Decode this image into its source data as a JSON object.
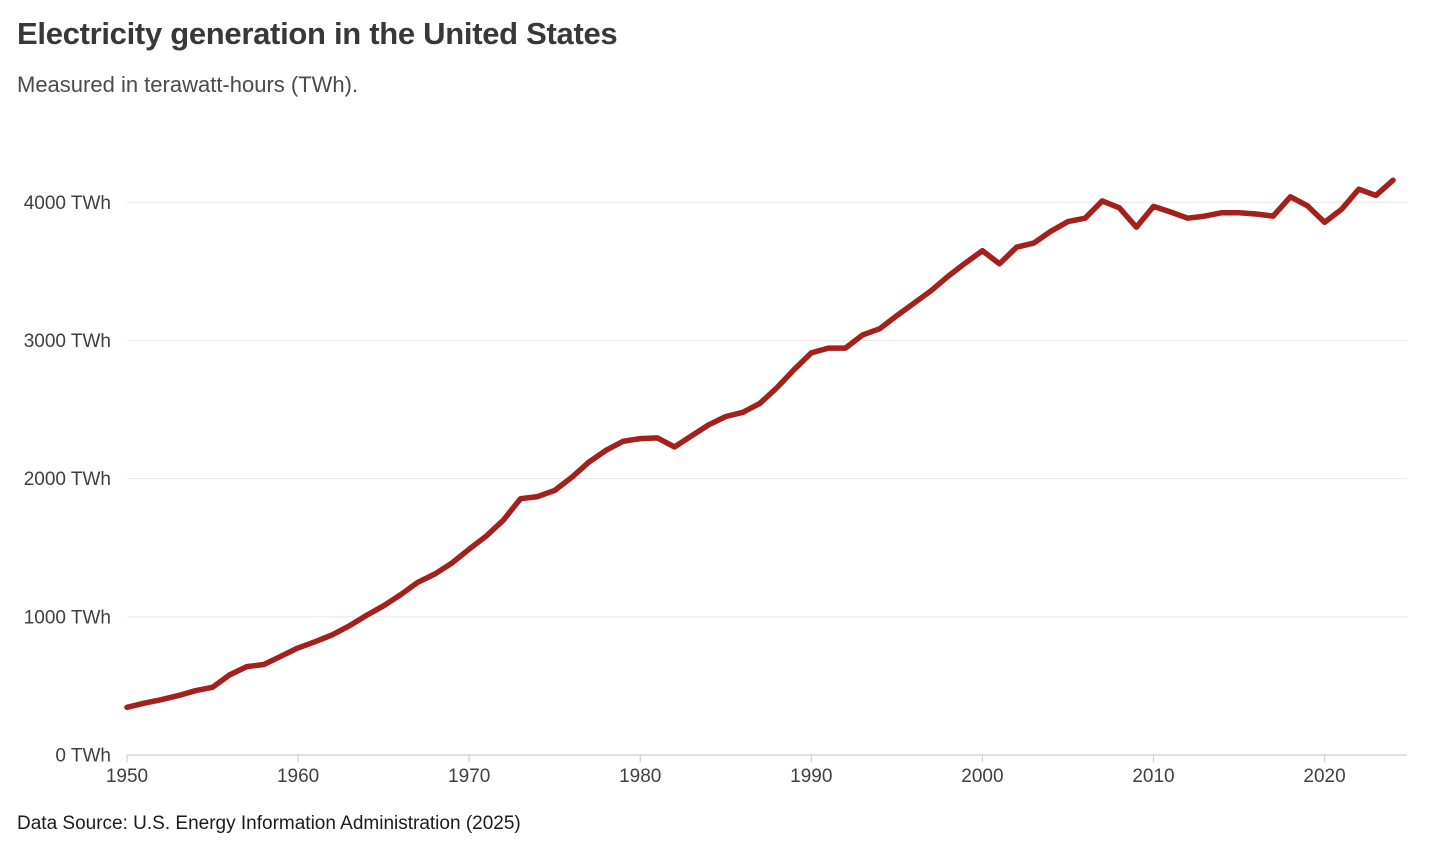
{
  "header": {
    "title": "Electricity generation in the United States",
    "subtitle": "Measured in terawatt-hours (TWh)."
  },
  "footer": {
    "source": "Data Source: U.S. Energy Information Administration (2025)"
  },
  "colors": {
    "line": "#A4201C",
    "grid": "#E7E7E7",
    "axis": "#CDCDCD",
    "tick_label": "#3F3F3F",
    "title": "#383838",
    "subtitle": "#4B4B4B",
    "source": "#1B1B1B",
    "background": "#FFFFFF"
  },
  "chart_data": {
    "type": "line",
    "title": "Electricity generation in the United States",
    "subtitle": "Measured in terawatt-hours (TWh).",
    "series_name": "Electricity generation",
    "unit": "TWh",
    "xlabel": "",
    "ylabel": "",
    "legend": "none",
    "grid": "horizontal",
    "x_ticks": [
      1950,
      1960,
      1970,
      1980,
      1990,
      2000,
      2010,
      2020
    ],
    "y_ticks": [
      0,
      1000,
      2000,
      3000,
      4000
    ],
    "y_tick_suffix": " TWh",
    "xlim": [
      1950,
      2024.8
    ],
    "ylim": [
      0,
      4300
    ],
    "x": [
      1950,
      1951,
      1952,
      1953,
      1954,
      1955,
      1956,
      1957,
      1958,
      1959,
      1960,
      1961,
      1962,
      1963,
      1964,
      1965,
      1966,
      1967,
      1968,
      1969,
      1970,
      1971,
      1972,
      1973,
      1974,
      1975,
      1976,
      1977,
      1978,
      1979,
      1980,
      1981,
      1982,
      1983,
      1984,
      1985,
      1986,
      1987,
      1988,
      1989,
      1990,
      1991,
      1992,
      1993,
      1994,
      1995,
      1996,
      1997,
      1998,
      1999,
      2000,
      2001,
      2002,
      2003,
      2004,
      2005,
      2006,
      2007,
      2008,
      2009,
      2010,
      2011,
      2012,
      2013,
      2014,
      2015,
      2016,
      2017,
      2018,
      2019,
      2020,
      2021,
      2022,
      2023,
      2024
    ],
    "values": [
      345,
      375,
      400,
      430,
      465,
      490,
      580,
      640,
      655,
      715,
      775,
      820,
      870,
      935,
      1010,
      1080,
      1160,
      1250,
      1310,
      1390,
      1490,
      1585,
      1700,
      1855,
      1870,
      1915,
      2010,
      2120,
      2205,
      2270,
      2290,
      2295,
      2230,
      2310,
      2390,
      2450,
      2480,
      2545,
      2660,
      2790,
      2910,
      2945,
      2945,
      3040,
      3085,
      3180,
      3270,
      3360,
      3465,
      3560,
      3650,
      3555,
      3675,
      3705,
      3790,
      3860,
      3885,
      4010,
      3960,
      3820,
      3970,
      3930,
      3885,
      3900,
      3925,
      3925,
      3915,
      3900,
      4040,
      3975,
      3855,
      3950,
      4095,
      4050,
      4160
    ]
  }
}
